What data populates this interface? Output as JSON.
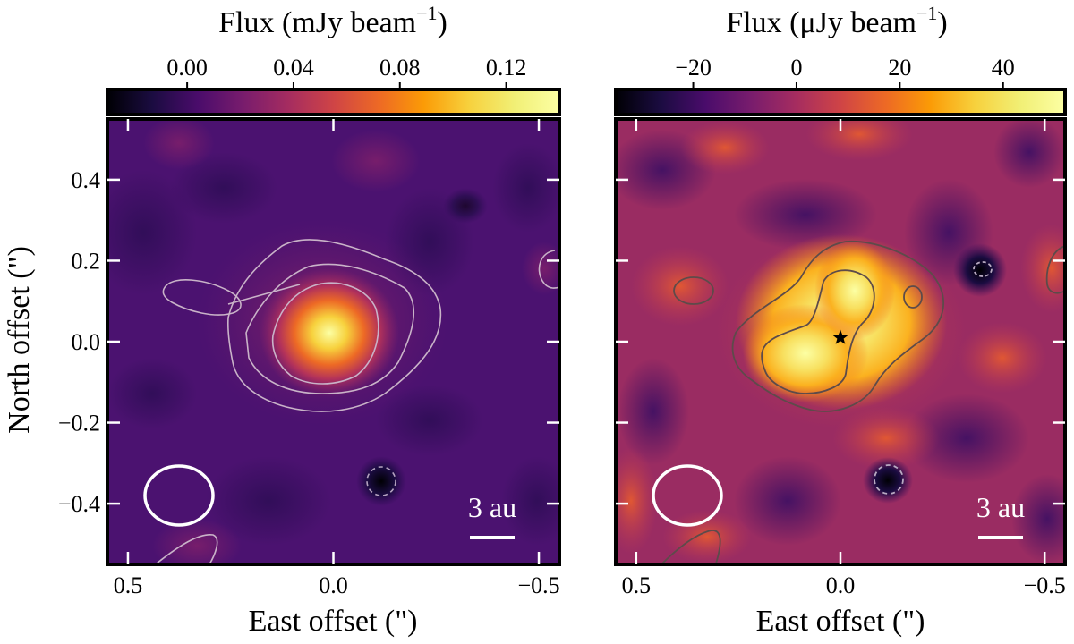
{
  "chart_data": [
    {
      "type": "heatmap",
      "panel": "left",
      "colorbar": {
        "label": "Flux (mJy beam",
        "label_sup": "−1",
        "label_close": ")",
        "ticks": [
          "0.00",
          "0.04",
          "0.08",
          "0.12"
        ],
        "tick_values": [
          0.0,
          0.04,
          0.08,
          0.12
        ],
        "range": [
          -0.03,
          0.14
        ],
        "colormap": "inferno"
      },
      "xlabel": "East offset (\")",
      "ylabel": "North offset (\")",
      "xticks": [
        "0.5",
        "0.0",
        "−0.5"
      ],
      "xtick_values": [
        0.5,
        0.0,
        -0.5
      ],
      "yticks": [
        "0.4",
        "0.2",
        "0.0",
        "−0.2",
        "−0.4"
      ],
      "ytick_values": [
        0.4,
        0.2,
        0.0,
        -0.2,
        -0.4
      ],
      "xlim": [
        0.55,
        -0.55
      ],
      "ylim": [
        -0.55,
        0.55
      ],
      "peak_offset": [
        0.0,
        0.02
      ],
      "scalebar": "3 au",
      "beam": "white ellipse, lower-left",
      "contours": "light grey solid; dashed negative",
      "markers": []
    },
    {
      "type": "heatmap",
      "panel": "right",
      "colorbar": {
        "label": "Flux (μJy beam",
        "label_sup": "−1",
        "label_close": ")",
        "ticks": [
          "−20",
          "0",
          "20",
          "40"
        ],
        "tick_values": [
          -20,
          0,
          20,
          40
        ],
        "range": [
          -35,
          52
        ],
        "colormap": "inferno"
      },
      "xlabel": "East offset (\")",
      "ylabel": "",
      "xticks": [
        "0.5",
        "0.0",
        "−0.5"
      ],
      "xtick_values": [
        0.5,
        0.0,
        -0.5
      ],
      "yticks": [],
      "xlim": [
        0.55,
        -0.55
      ],
      "ylim": [
        -0.55,
        0.55
      ],
      "scalebar": "3 au",
      "beam": "white ellipse, lower-left",
      "contours": "dark grey solid; dashed negative",
      "markers": [
        {
          "type": "star",
          "x": 0.0,
          "y": 0.01,
          "color": "#000000"
        }
      ]
    }
  ]
}
